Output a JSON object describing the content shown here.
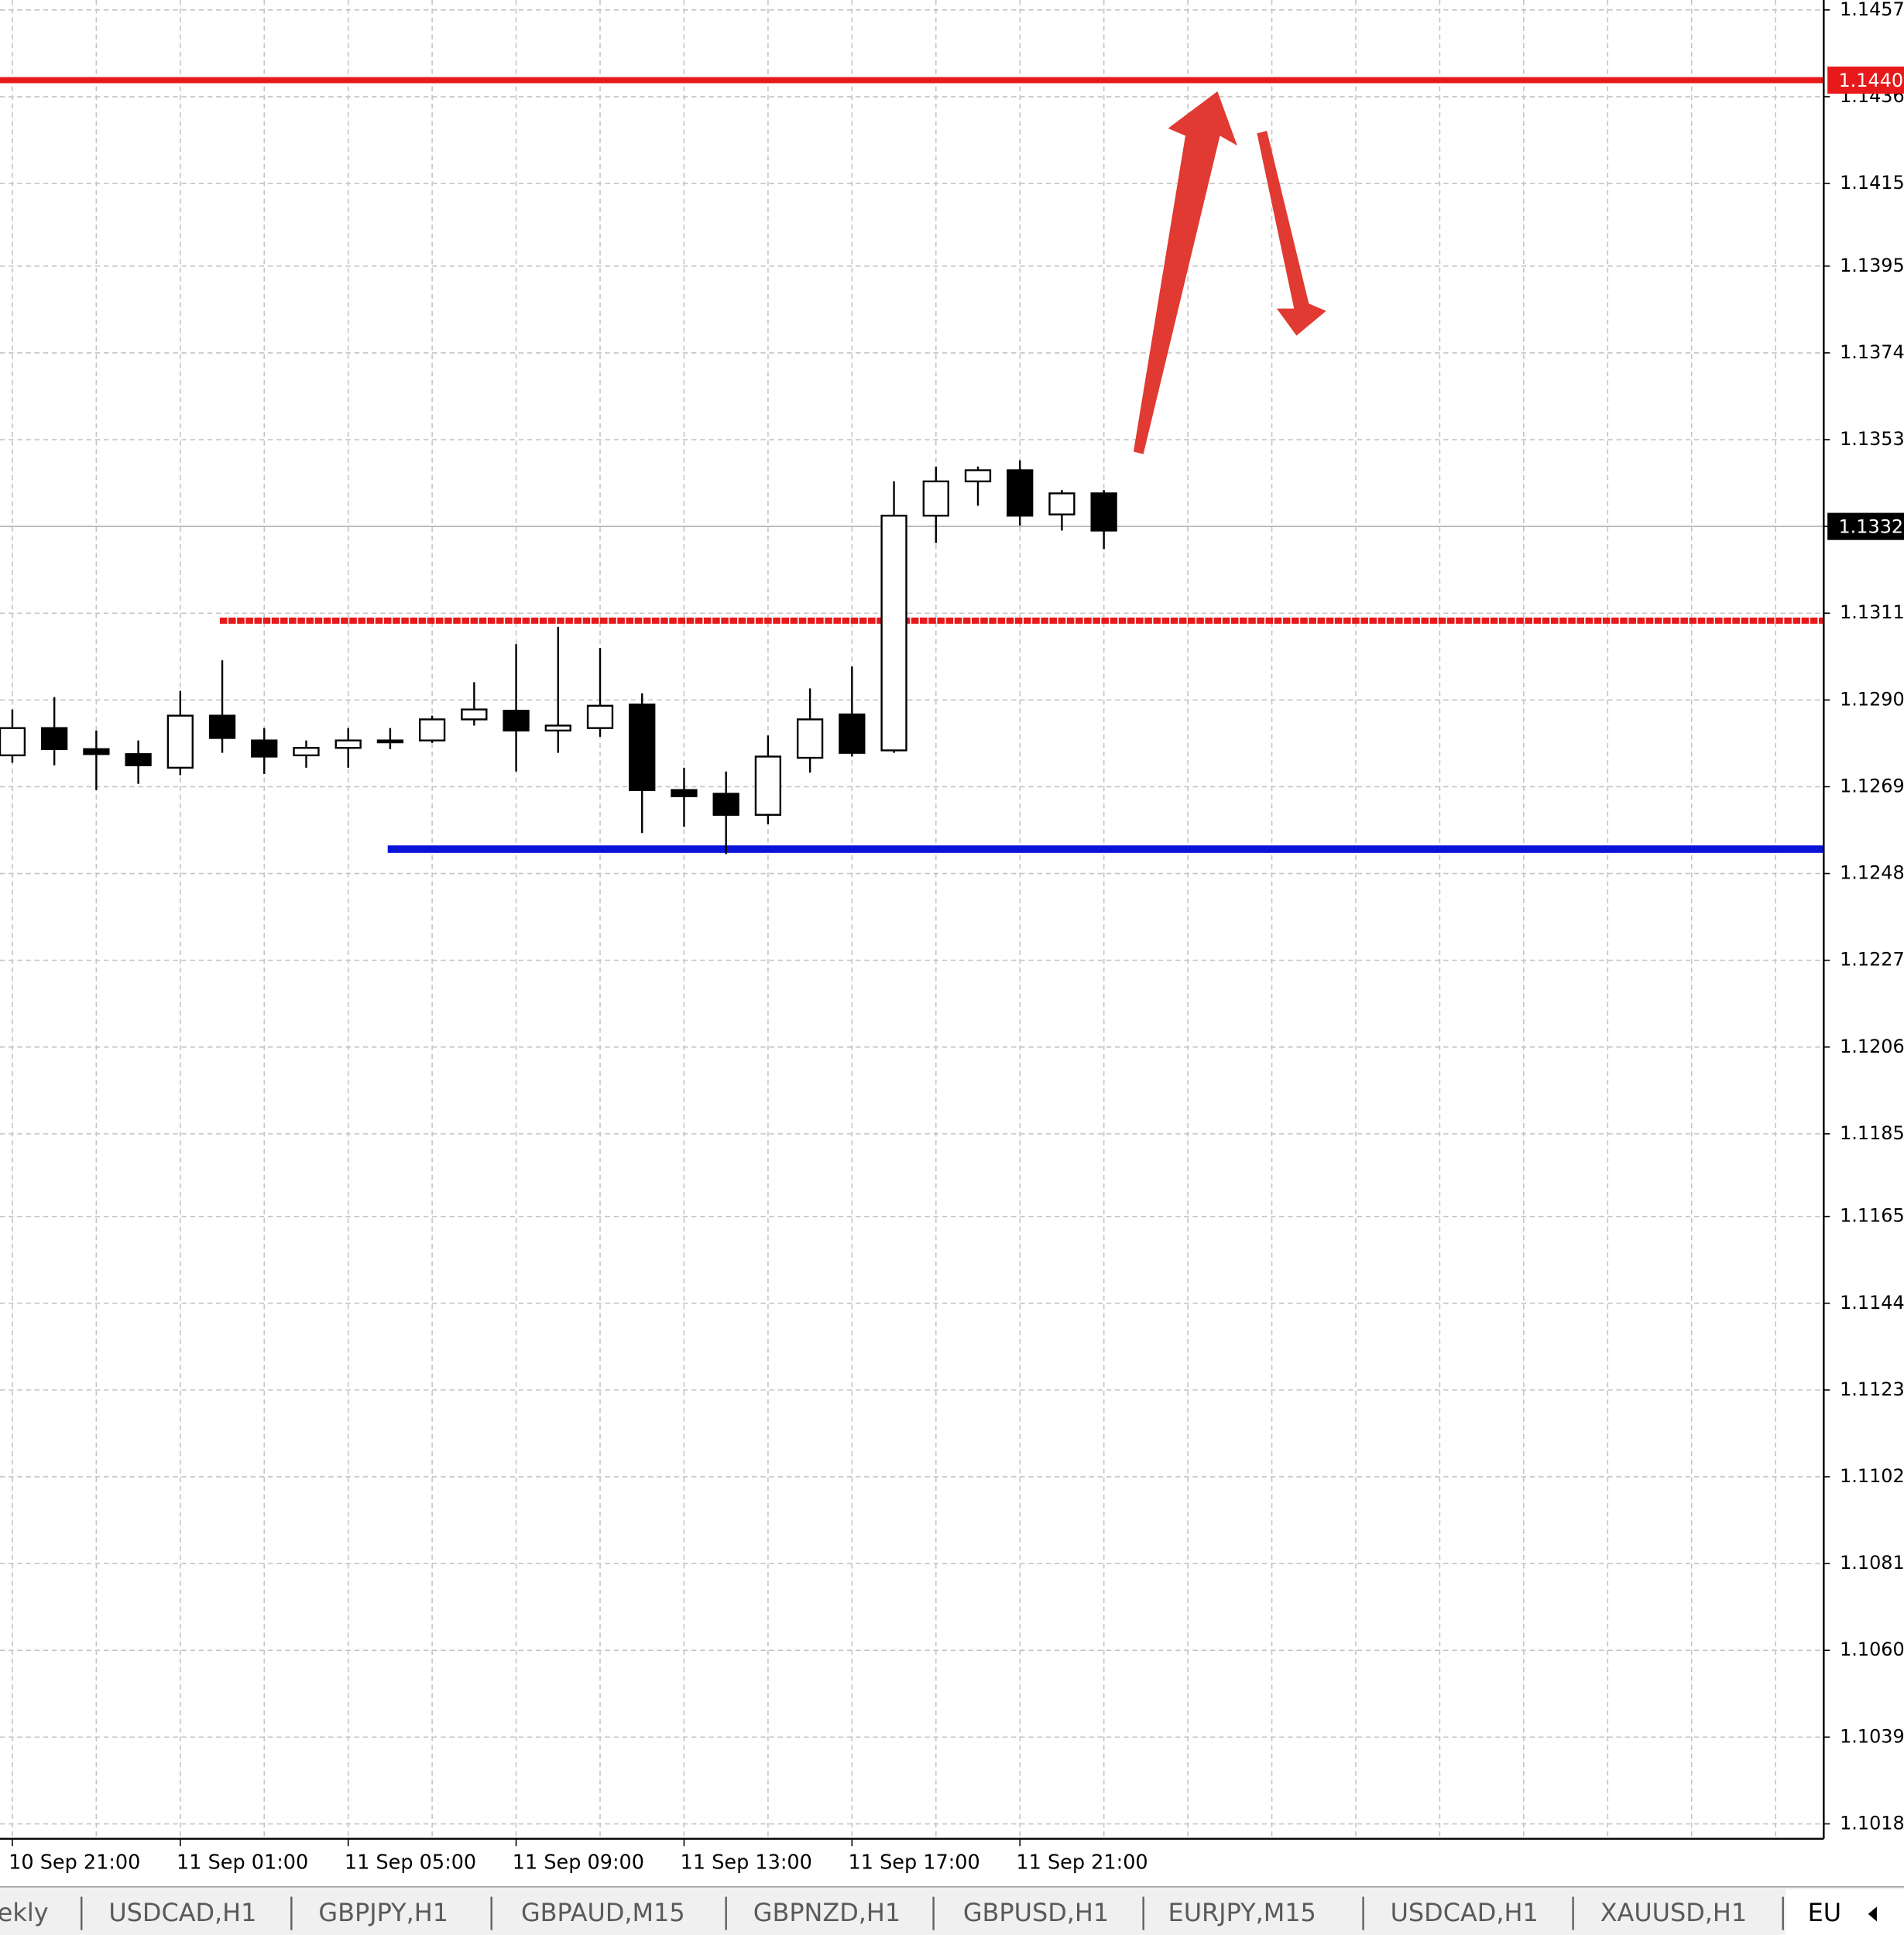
{
  "chart_data": {
    "type": "candlestick",
    "categories": [
      "10 Sep 21:00",
      null,
      null,
      null,
      "11 Sep 01:00",
      null,
      null,
      null,
      "11 Sep 05:00",
      null,
      null,
      null,
      "11 Sep 09:00",
      null,
      null,
      null,
      "11 Sep 13:00",
      null,
      null,
      null,
      "11 Sep 17:00",
      null,
      null,
      null,
      "11 Sep 21:00",
      null,
      null
    ],
    "open": [
      1.12766,
      1.12832,
      1.12781,
      1.12769,
      1.12736,
      1.12862,
      1.12802,
      1.12766,
      1.12784,
      1.12799,
      1.12802,
      1.12853,
      1.12874,
      1.12826,
      1.12832,
      1.12889,
      1.12682,
      1.12673,
      1.12622,
      1.1276,
      1.12865,
      1.12778,
      1.13346,
      1.13429,
      1.13456,
      1.13349,
      1.134
    ],
    "high": [
      1.12877,
      1.12907,
      1.12826,
      1.12802,
      1.12922,
      1.12996,
      1.12832,
      1.12802,
      1.12832,
      1.12832,
      1.12862,
      1.12943,
      1.13035,
      1.13077,
      1.13026,
      1.12916,
      1.12736,
      1.12727,
      1.12814,
      1.12928,
      1.12981,
      1.13429,
      1.13465,
      1.13465,
      1.1348,
      1.13408,
      1.13408
    ],
    "low": [
      1.12748,
      1.12742,
      1.12682,
      1.12697,
      1.12718,
      1.12772,
      1.12721,
      1.12736,
      1.12736,
      1.12781,
      1.12796,
      1.12838,
      1.12727,
      1.12772,
      1.12811,
      1.12578,
      1.12593,
      1.12527,
      1.12599,
      1.12724,
      1.12763,
      1.12772,
      1.1328,
      1.1337,
      1.13322,
      1.1331,
      1.13265
    ],
    "close": [
      1.12832,
      1.12781,
      1.12769,
      1.12742,
      1.12862,
      1.12808,
      1.12763,
      1.12784,
      1.12802,
      1.12802,
      1.12853,
      1.12877,
      1.12826,
      1.12838,
      1.12886,
      1.12682,
      1.12667,
      1.12622,
      1.12763,
      1.12853,
      1.12772,
      1.13346,
      1.13429,
      1.13456,
      1.13346,
      1.134,
      1.1331
    ],
    "up_color": "#ffffff",
    "down_color": "#000000",
    "ylim": [
      1.10144,
      1.14594
    ],
    "yticks": [
      1.1457,
      1.1436,
      1.1415,
      1.1395,
      1.1374,
      1.1353,
      1.1332,
      1.1311,
      {
        "value": 1.129,
        "label": "1.1290"
      },
      1.1269,
      1.1248,
      1.1227,
      1.1206,
      1.1185,
      1.1165,
      1.1144,
      1.1123,
      1.1102,
      1.1081,
      {
        "value": 1.106,
        "label": "1.1060"
      },
      1.1039,
      1.1018
    ],
    "grid": true,
    "levels": [
      {
        "value": 1.144,
        "label": "1.1440",
        "color": "#e8191b"
      },
      {
        "value": 1.13092,
        "color": "#e8191b"
      },
      {
        "value": 1.12539,
        "color": "#0a14d8"
      }
    ],
    "last_price": 1.1332
  },
  "tabs": [
    "ekly",
    "USDCAD,H1",
    "GBPJPY,H1",
    "GBPAUD,M15",
    "GBPNZD,H1",
    "GBPUSD,H1",
    "EURJPY,M15",
    "USDCAD,H1",
    "XAUUSD,H1",
    "EU"
  ]
}
